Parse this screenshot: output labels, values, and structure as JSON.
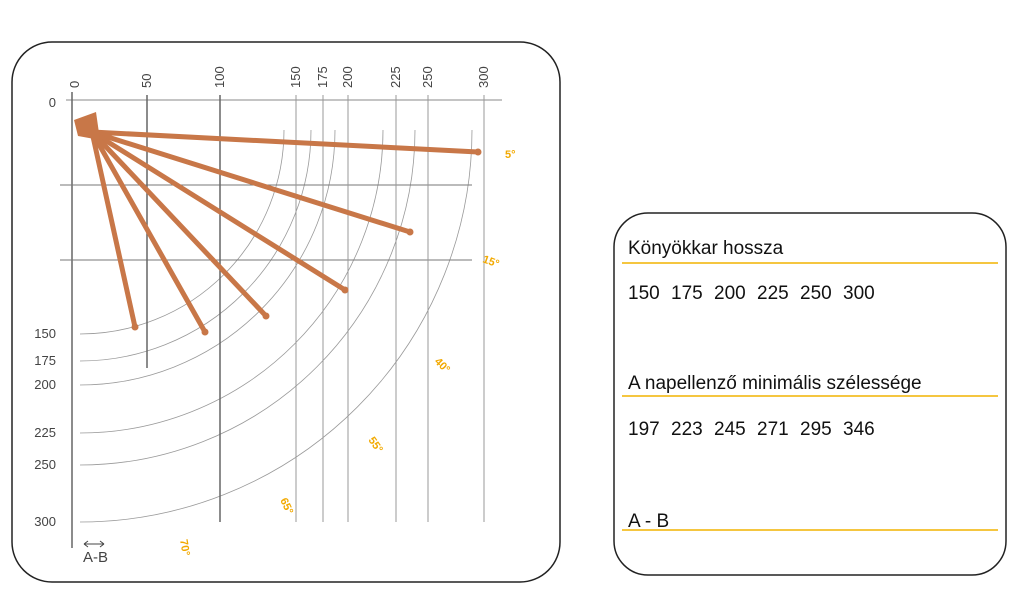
{
  "diagram": {
    "top_labels": [
      "0",
      "50",
      "100",
      "150",
      "175",
      "200",
      "225",
      "250",
      "300"
    ],
    "left_labels": [
      "0",
      "150",
      "175",
      "200",
      "225",
      "250",
      "300"
    ],
    "angle_labels": [
      "5°",
      "15°",
      "40°",
      "55°",
      "65°",
      "70°"
    ],
    "ab_label": "A-B"
  },
  "panel": {
    "heading_1": "Könyökkar hossza",
    "values_1": [
      "150",
      "175",
      "200",
      "225",
      "250",
      "300"
    ],
    "heading_2": "A napellenző minimális szélessége",
    "values_2": [
      "197",
      "223",
      "245",
      "271",
      "295",
      "346"
    ],
    "heading_3": "A - B"
  }
}
